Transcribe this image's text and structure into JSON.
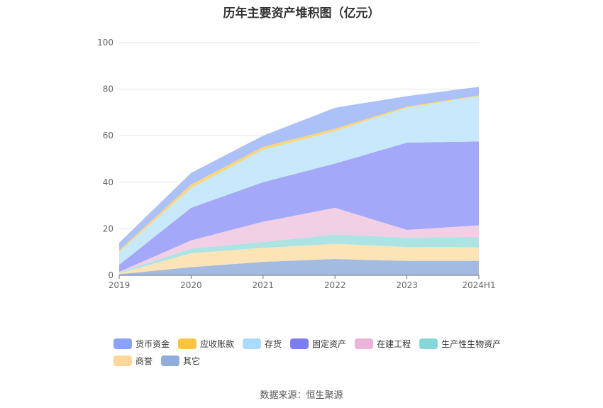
{
  "chart_data": {
    "type": "area",
    "stacked": true,
    "title": "历年主要资产堆积图（亿元）",
    "categories": [
      "2019",
      "2020",
      "2021",
      "2022",
      "2023",
      "2024H1"
    ],
    "ylim": [
      0,
      100
    ],
    "yticks": [
      0,
      20,
      40,
      60,
      80,
      100
    ],
    "grid": true,
    "legend_position": "bottom",
    "series": [
      {
        "name": "其它",
        "color": "#9fb7df",
        "values": [
          0.5,
          3.5,
          5.8,
          7.0,
          6.2,
          6.2
        ]
      },
      {
        "name": "商誉",
        "color": "#fde3b3",
        "values": [
          0.3,
          6.0,
          6.0,
          6.5,
          6.0,
          5.8
        ]
      },
      {
        "name": "生产性生物资产",
        "color": "#a8e2e2",
        "values": [
          0.3,
          2.0,
          2.5,
          4.0,
          4.0,
          4.5
        ]
      },
      {
        "name": "在建工程",
        "color": "#f0cde4",
        "values": [
          0.4,
          3.5,
          8.7,
          11.5,
          3.3,
          5.0
        ]
      },
      {
        "name": "固定资产",
        "color": "#9fa3f8",
        "values": [
          3.0,
          14.0,
          17.0,
          19.0,
          37.5,
          36.0
        ]
      },
      {
        "name": "存货",
        "color": "#c4e8fb",
        "values": [
          5.5,
          8.5,
          14.0,
          14.0,
          15.0,
          19.5
        ]
      },
      {
        "name": "应收账款",
        "color": "#fcd36e",
        "values": [
          0.7,
          1.5,
          1.2,
          1.0,
          0.5,
          0.3
        ]
      },
      {
        "name": "货币资金",
        "color": "#a9bef9",
        "values": [
          3.3,
          5.0,
          4.8,
          9.0,
          4.5,
          3.7
        ]
      }
    ]
  },
  "legend": {
    "row1": [
      {
        "label": "货币资金",
        "color": "#8aa3f8"
      },
      {
        "label": "应收账款",
        "color": "#fcc43e"
      },
      {
        "label": "存货",
        "color": "#a8dcfa"
      },
      {
        "label": "固定资产",
        "color": "#7b7ef2"
      },
      {
        "label": "在建工程",
        "color": "#eab4d8"
      },
      {
        "label": "生产性生物资产",
        "color": "#86d8d8"
      }
    ],
    "row2": [
      {
        "label": "商誉",
        "color": "#fdd79a"
      },
      {
        "label": "其它",
        "color": "#91acdb"
      }
    ]
  },
  "footer": {
    "source": "数据来源：恒生聚源"
  }
}
